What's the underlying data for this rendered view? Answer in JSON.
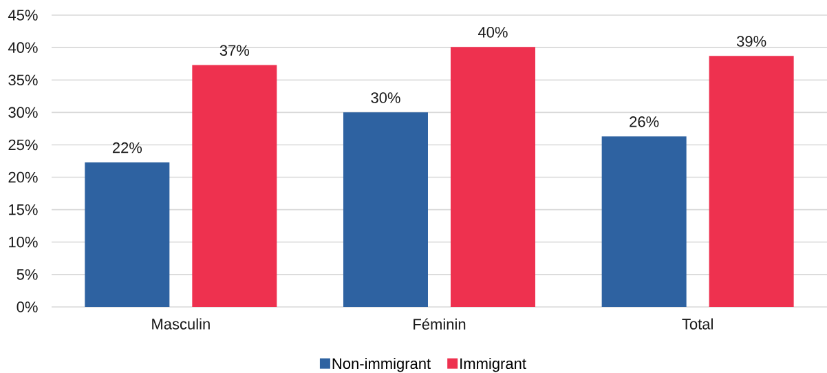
{
  "chart_data": {
    "type": "bar",
    "categories": [
      "Masculin",
      "Féminin",
      "Total"
    ],
    "series": [
      {
        "name": "Non-immigrant",
        "color": "#2e62a1",
        "values": [
          22.3,
          30.0,
          26.3
        ],
        "value_labels": [
          "22%",
          "30%",
          "26%"
        ]
      },
      {
        "name": "Immigrant",
        "color": "#ee314f",
        "values": [
          37.3,
          40.1,
          38.7
        ],
        "value_labels": [
          "37%",
          "40%",
          "39%"
        ]
      }
    ],
    "ylim": [
      0,
      45
    ],
    "yticks": [
      {
        "value": 0,
        "label": "0%"
      },
      {
        "value": 5,
        "label": "5%"
      },
      {
        "value": 10,
        "label": "10%"
      },
      {
        "value": 15,
        "label": "15%"
      },
      {
        "value": 20,
        "label": "20%"
      },
      {
        "value": 25,
        "label": "25%"
      },
      {
        "value": 30,
        "label": "30%"
      },
      {
        "value": 35,
        "label": "35%"
      },
      {
        "value": 40,
        "label": "40%"
      },
      {
        "value": 45,
        "label": "45%"
      }
    ],
    "grid": "y",
    "legend": "bottom"
  }
}
